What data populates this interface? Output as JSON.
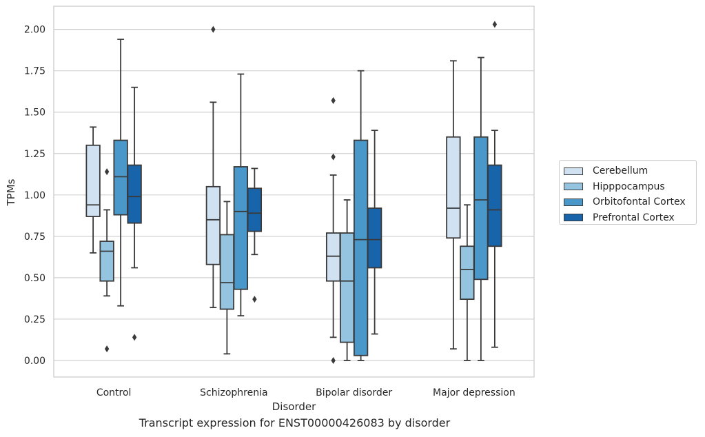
{
  "caption": "Transcript expression for ENST00000426083 by disorder",
  "chart_data": {
    "type": "boxplot",
    "xlabel": "Disorder",
    "ylabel": "TPMs",
    "ylim": [
      -0.1,
      2.14
    ],
    "yticks": [
      "0.00",
      "0.25",
      "0.50",
      "0.75",
      "1.00",
      "1.25",
      "1.50",
      "1.75",
      "2.00"
    ],
    "ytick_values": [
      0,
      0.25,
      0.5,
      0.75,
      1.0,
      1.25,
      1.5,
      1.75,
      2.0
    ],
    "grid": "horizontal",
    "legend_position": "right",
    "categories": [
      "Control",
      "Schizophrenia",
      "Bipolar disorder",
      "Major depression"
    ],
    "series": [
      {
        "name": "Cerebellum",
        "color": "#d0e1f2",
        "boxes": [
          {
            "whislo": 0.65,
            "q1": 0.87,
            "med": 0.94,
            "q3": 1.3,
            "whishi": 1.41,
            "fliers": []
          },
          {
            "whislo": 0.32,
            "q1": 0.58,
            "med": 0.85,
            "q3": 1.05,
            "whishi": 1.56,
            "fliers": [
              2.0
            ]
          },
          {
            "whislo": 0.14,
            "q1": 0.48,
            "med": 0.63,
            "q3": 0.77,
            "whishi": 1.12,
            "fliers": [
              1.57,
              1.23,
              0.0
            ]
          },
          {
            "whislo": 0.07,
            "q1": 0.74,
            "med": 0.92,
            "q3": 1.35,
            "whishi": 1.81,
            "fliers": []
          }
        ]
      },
      {
        "name": "Hipppocampus",
        "color": "#94c4df",
        "boxes": [
          {
            "whislo": 0.39,
            "q1": 0.48,
            "med": 0.66,
            "q3": 0.72,
            "whishi": 0.91,
            "fliers": [
              1.14,
              0.07
            ]
          },
          {
            "whislo": 0.04,
            "q1": 0.31,
            "med": 0.47,
            "q3": 0.76,
            "whishi": 0.96,
            "fliers": []
          },
          {
            "whislo": 0.0,
            "q1": 0.11,
            "med": 0.48,
            "q3": 0.77,
            "whishi": 0.97,
            "fliers": []
          },
          {
            "whislo": 0.0,
            "q1": 0.37,
            "med": 0.55,
            "q3": 0.69,
            "whishi": 0.94,
            "fliers": []
          }
        ]
      },
      {
        "name": "Orbitofontal Cortex",
        "color": "#4a98c9",
        "boxes": [
          {
            "whislo": 0.33,
            "q1": 0.88,
            "med": 1.11,
            "q3": 1.33,
            "whishi": 1.94,
            "fliers": []
          },
          {
            "whislo": 0.27,
            "q1": 0.43,
            "med": 0.9,
            "q3": 1.17,
            "whishi": 1.73,
            "fliers": []
          },
          {
            "whislo": 0.0,
            "q1": 0.03,
            "med": 0.73,
            "q3": 1.33,
            "whishi": 1.75,
            "fliers": []
          },
          {
            "whislo": 0.0,
            "q1": 0.49,
            "med": 0.97,
            "q3": 1.35,
            "whishi": 1.83,
            "fliers": []
          }
        ]
      },
      {
        "name": "Prefrontal Cortex",
        "color": "#1764ab",
        "boxes": [
          {
            "whislo": 0.56,
            "q1": 0.83,
            "med": 0.99,
            "q3": 1.18,
            "whishi": 1.65,
            "fliers": [
              0.14
            ]
          },
          {
            "whislo": 0.64,
            "q1": 0.78,
            "med": 0.89,
            "q3": 1.04,
            "whishi": 1.16,
            "fliers": [
              0.37
            ]
          },
          {
            "whislo": 0.16,
            "q1": 0.56,
            "med": 0.73,
            "q3": 0.92,
            "whishi": 1.39,
            "fliers": []
          },
          {
            "whislo": 0.08,
            "q1": 0.69,
            "med": 0.91,
            "q3": 1.18,
            "whishi": 1.39,
            "fliers": [
              2.03
            ]
          }
        ]
      }
    ]
  }
}
